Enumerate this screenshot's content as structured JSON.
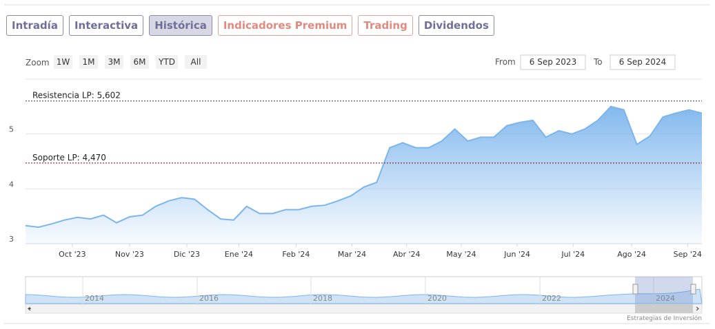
{
  "tabs": [
    {
      "label": "Intradía"
    },
    {
      "label": "Interactiva"
    },
    {
      "label": "Histórica",
      "active": true
    },
    {
      "label": "Indicadores Premium",
      "premium": true
    },
    {
      "label": "Trading",
      "premium": true
    },
    {
      "label": "Dividendos"
    }
  ],
  "range_selector": {
    "zoom_label": "Zoom",
    "buttons": [
      "1W",
      "1M",
      "3M",
      "6M",
      "YTD",
      "All"
    ],
    "from_label": "From",
    "from": "6 Sep 2023",
    "to_label": "To",
    "to": "6 Sep 2024"
  },
  "credit": "Estrategias de Inversión",
  "navigator": {
    "labels": [
      "2014",
      "2016",
      "2018",
      "2020",
      "2022",
      "2024"
    ]
  },
  "chart_data": {
    "type": "area",
    "color": "#7cb5ec",
    "values": [
      3.33,
      3.3,
      3.36,
      3.43,
      3.48,
      3.45,
      3.52,
      3.38,
      3.49,
      3.52,
      3.68,
      3.78,
      3.84,
      3.81,
      3.62,
      3.45,
      3.43,
      3.68,
      3.55,
      3.55,
      3.62,
      3.62,
      3.68,
      3.7,
      3.78,
      3.87,
      4.03,
      4.12,
      4.75,
      4.84,
      4.75,
      4.75,
      4.87,
      5.09,
      4.87,
      4.94,
      4.94,
      5.15,
      5.21,
      5.25,
      4.94,
      5.06,
      5.0,
      5.09,
      5.25,
      5.5,
      5.44,
      4.81,
      4.96,
      5.31,
      5.38,
      5.44,
      5.38
    ],
    "xlim": [
      0,
      52
    ],
    "xticks": [
      {
        "value": 3.6,
        "label": "Oct '23"
      },
      {
        "value": 8.0,
        "label": "Nov '23"
      },
      {
        "value": 12.4,
        "label": "Dic '23"
      },
      {
        "value": 16.4,
        "label": "Ene '24"
      },
      {
        "value": 20.8,
        "label": "Feb '24"
      },
      {
        "value": 25.1,
        "label": "Mar '24"
      },
      {
        "value": 29.3,
        "label": "Abr '24"
      },
      {
        "value": 33.5,
        "label": "May '24"
      },
      {
        "value": 37.8,
        "label": "Jun '24"
      },
      {
        "value": 42.1,
        "label": "Jul '24"
      },
      {
        "value": 46.6,
        "label": "Ago '24"
      },
      {
        "value": 50.9,
        "label": "Sep '24"
      }
    ],
    "ylim": [
      3,
      6
    ],
    "yticks": [
      3,
      4,
      5
    ],
    "grid": true,
    "plot_lines": [
      {
        "value": 5.602,
        "label": "Resistencia LP: 5,602"
      },
      {
        "value": 4.47,
        "label": "Soporte LP: 4,470"
      }
    ]
  }
}
